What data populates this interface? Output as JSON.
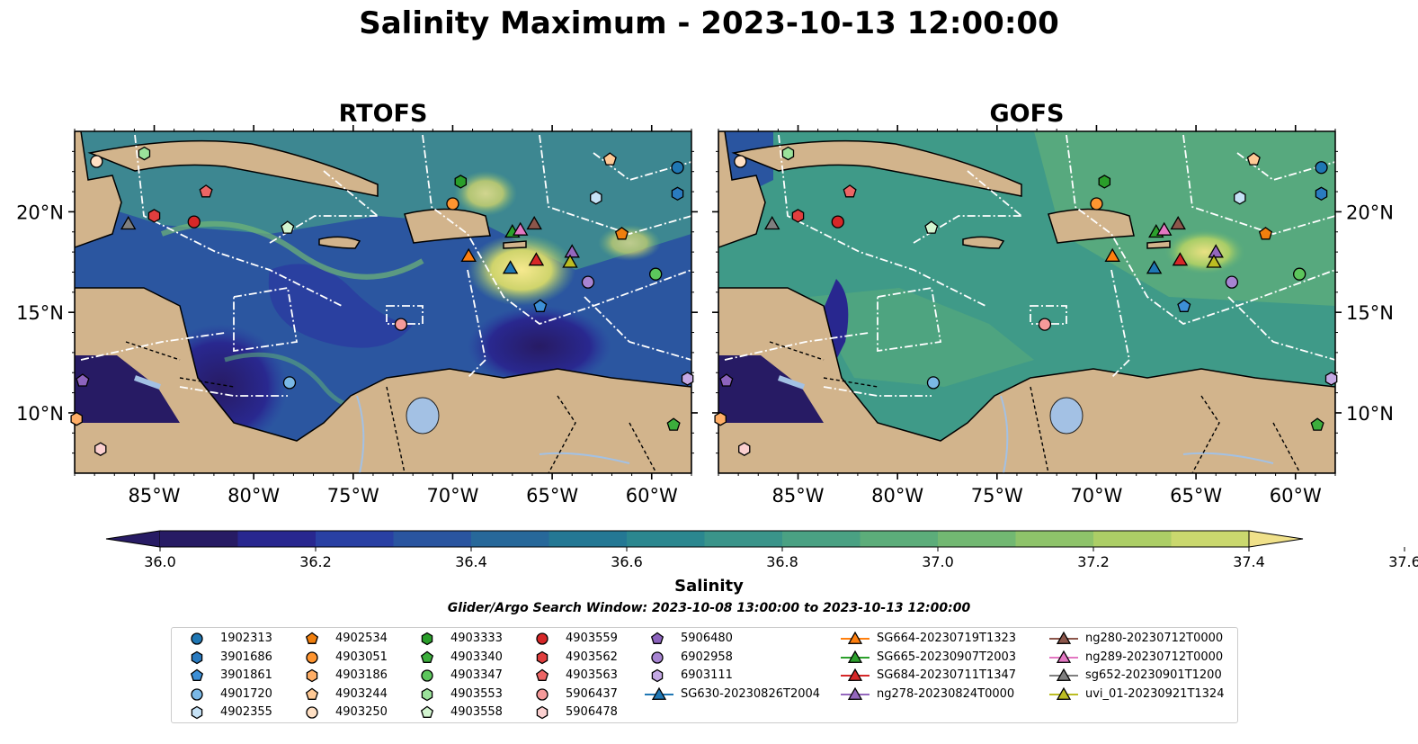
{
  "title": "Salinity Maximum - 2023-10-13 12:00:00",
  "panels": [
    {
      "title": "RTOFS"
    },
    {
      "title": "GOFS"
    }
  ],
  "axes": {
    "x_ticks": [
      "85°W",
      "80°W",
      "75°W",
      "70°W",
      "65°W",
      "60°W"
    ],
    "y_ticks": [
      "20°N",
      "15°N",
      "10°N"
    ]
  },
  "colorbar": {
    "label": "Salinity",
    "ticks": [
      "36.0",
      "36.2",
      "36.4",
      "36.6",
      "36.8",
      "37.0",
      "37.2",
      "37.4",
      "37.6"
    ],
    "colors": [
      "#271b64",
      "#28278f",
      "#2940a3",
      "#2a55a0",
      "#27689a",
      "#247894",
      "#2b878f",
      "#3a948a",
      "#4aa183",
      "#5cad7a",
      "#72b872",
      "#8ec36a",
      "#acce66",
      "#cad86e",
      "#f0e18a"
    ]
  },
  "subtitle": "Glider/Argo Search Window: 2023-10-08 13:00:00 to 2023-10-13 12:00:00",
  "legend": {
    "columns": [
      [
        {
          "label": "1902313",
          "marker": "circle",
          "color": "#1f77b4"
        },
        {
          "label": "3901686",
          "marker": "hexagon",
          "color": "#2a7bc0"
        },
        {
          "label": "3901861",
          "marker": "pentagon",
          "color": "#3d8fd6"
        },
        {
          "label": "4901720",
          "marker": "circle",
          "color": "#7ab8e6"
        },
        {
          "label": "4902355",
          "marker": "hexagon",
          "color": "#c6e2f6"
        }
      ],
      [
        {
          "label": "4902534",
          "marker": "pentagon",
          "color": "#f07f0e"
        },
        {
          "label": "4903051",
          "marker": "circle",
          "color": "#ff9530"
        },
        {
          "label": "4903186",
          "marker": "hexagon",
          "color": "#ffae66"
        },
        {
          "label": "4903244",
          "marker": "pentagon",
          "color": "#ffc995"
        },
        {
          "label": "4903250",
          "marker": "circle",
          "color": "#ffe0c4"
        }
      ],
      [
        {
          "label": "4903333",
          "marker": "hexagon",
          "color": "#2a9e2a"
        },
        {
          "label": "4903340",
          "marker": "pentagon",
          "color": "#3cae3c"
        },
        {
          "label": "4903347",
          "marker": "circle",
          "color": "#5cc65c"
        },
        {
          "label": "4903553",
          "marker": "hexagon",
          "color": "#9be29b"
        },
        {
          "label": "4903558",
          "marker": "pentagon",
          "color": "#d3f5d0"
        }
      ],
      [
        {
          "label": "4903559",
          "marker": "circle",
          "color": "#d62728"
        },
        {
          "label": "4903562",
          "marker": "hexagon",
          "color": "#e03e3e"
        },
        {
          "label": "4903563",
          "marker": "pentagon",
          "color": "#ec6565"
        },
        {
          "label": "5906437",
          "marker": "circle",
          "color": "#f59a9a"
        },
        {
          "label": "5906478",
          "marker": "hexagon",
          "color": "#fbd0d0"
        }
      ],
      [
        {
          "label": "5906480",
          "marker": "pentagon",
          "color": "#8c63bd"
        },
        {
          "label": "6902958",
          "marker": "circle",
          "color": "#a784d2"
        },
        {
          "label": "6903111",
          "marker": "hexagon",
          "color": "#c4a9e4"
        },
        {
          "label": "SG630-20230826T2004",
          "marker": "triangle-line",
          "color": "#1f77b4"
        }
      ],
      [
        {
          "label": "SG664-20230719T1323",
          "marker": "triangle-line",
          "color": "#ff7f0e"
        },
        {
          "label": "SG665-20230907T2003",
          "marker": "triangle-line",
          "color": "#2ca02c"
        },
        {
          "label": "SG684-20230711T1347",
          "marker": "triangle-line",
          "color": "#d62728"
        },
        {
          "label": "ng278-20230824T0000",
          "marker": "triangle-line",
          "color": "#9467bd"
        }
      ],
      [
        {
          "label": "ng280-20230712T0000",
          "marker": "triangle-line",
          "color": "#8c564b"
        },
        {
          "label": "ng289-20230712T0000",
          "marker": "triangle-line",
          "color": "#e377c2"
        },
        {
          "label": "sg652-20230901T1200",
          "marker": "triangle-line",
          "color": "#7f7f7f"
        },
        {
          "label": "uvi_01-20230921T1324",
          "marker": "triangle-line",
          "color": "#bcbd22"
        }
      ]
    ]
  },
  "chart_data": {
    "type": "heatmap",
    "title": "Salinity Maximum - 2023-10-13 12:00:00",
    "panels": [
      "RTOFS",
      "GOFS"
    ],
    "x_range": [
      -89,
      -58
    ],
    "y_range": [
      7,
      24
    ],
    "colorbar_range": [
      36.0,
      37.6
    ],
    "colorbar_label": "Salinity",
    "land_color": "#d2b48c",
    "points": [
      {
        "name": "1902313",
        "marker": "circle",
        "color": "#1f77b4",
        "lon": -58.7,
        "lat": 22.2
      },
      {
        "name": "3901686",
        "marker": "hexagon",
        "color": "#2a7bc0",
        "lon": -58.7,
        "lat": 20.9
      },
      {
        "name": "3901861",
        "marker": "pentagon",
        "color": "#3d8fd6",
        "lon": -65.6,
        "lat": 15.3
      },
      {
        "name": "4901720",
        "marker": "circle",
        "color": "#7ab8e6",
        "lon": -78.2,
        "lat": 11.5
      },
      {
        "name": "4902355",
        "marker": "hexagon",
        "color": "#c6e2f6",
        "lon": -62.8,
        "lat": 20.7
      },
      {
        "name": "4902534",
        "marker": "pentagon",
        "color": "#f07f0e",
        "lon": -61.5,
        "lat": 18.9
      },
      {
        "name": "4903051",
        "marker": "circle",
        "color": "#ff9530",
        "lon": -70.0,
        "lat": 20.4
      },
      {
        "name": "4903186",
        "marker": "hexagon",
        "color": "#ffae66",
        "lon": -88.9,
        "lat": 9.7
      },
      {
        "name": "4903244",
        "marker": "pentagon",
        "color": "#ffc995",
        "lon": -62.1,
        "lat": 22.6
      },
      {
        "name": "4903250",
        "marker": "circle",
        "color": "#ffe0c4",
        "lon": -87.9,
        "lat": 22.5
      },
      {
        "name": "4903333",
        "marker": "hexagon",
        "color": "#2a9e2a",
        "lon": -69.6,
        "lat": 21.5
      },
      {
        "name": "4903340",
        "marker": "pentagon",
        "color": "#3cae3c",
        "lon": -58.9,
        "lat": 9.4
      },
      {
        "name": "4903347",
        "marker": "circle",
        "color": "#5cc65c",
        "lon": -59.8,
        "lat": 16.9
      },
      {
        "name": "4903553",
        "marker": "hexagon",
        "color": "#9be29b",
        "lon": -85.5,
        "lat": 22.9
      },
      {
        "name": "4903558",
        "marker": "pentagon",
        "color": "#d3f5d0",
        "lon": -78.3,
        "lat": 19.2
      },
      {
        "name": "4903559",
        "marker": "circle",
        "color": "#d62728",
        "lon": -83.0,
        "lat": 19.5
      },
      {
        "name": "4903562",
        "marker": "hexagon",
        "color": "#e03e3e",
        "lon": -85.0,
        "lat": 19.8
      },
      {
        "name": "4903563",
        "marker": "pentagon",
        "color": "#ec6565",
        "lon": -82.4,
        "lat": 21.0
      },
      {
        "name": "5906437",
        "marker": "circle",
        "color": "#f59a9a",
        "lon": -72.6,
        "lat": 14.4
      },
      {
        "name": "5906478",
        "marker": "hexagon",
        "color": "#fbd0d0",
        "lon": -87.7,
        "lat": 8.2
      },
      {
        "name": "5906480",
        "marker": "pentagon",
        "color": "#8c63bd",
        "lon": -88.6,
        "lat": 11.6
      },
      {
        "name": "6902958",
        "marker": "circle",
        "color": "#a784d2",
        "lon": -63.2,
        "lat": 16.5
      },
      {
        "name": "6903111",
        "marker": "hexagon",
        "color": "#c4a9e4",
        "lon": -58.2,
        "lat": 11.7
      },
      {
        "name": "SG630-20230826T2004",
        "marker": "triangle",
        "color": "#1f77b4",
        "lon": -67.1,
        "lat": 17.2
      },
      {
        "name": "SG664-20230719T1323",
        "marker": "triangle",
        "color": "#ff7f0e",
        "lon": -69.2,
        "lat": 17.8
      },
      {
        "name": "SG665-20230907T2003",
        "marker": "triangle",
        "color": "#2ca02c",
        "lon": -67.0,
        "lat": 19.0
      },
      {
        "name": "SG684-20230711T1347",
        "marker": "triangle",
        "color": "#d62728",
        "lon": -65.8,
        "lat": 17.6
      },
      {
        "name": "ng278-20230824T0000",
        "marker": "triangle",
        "color": "#9467bd",
        "lon": -64.0,
        "lat": 18.0
      },
      {
        "name": "ng280-20230712T0000",
        "marker": "triangle",
        "color": "#8c564b",
        "lon": -65.9,
        "lat": 19.4
      },
      {
        "name": "ng289-20230712T0000",
        "marker": "triangle",
        "color": "#e377c2",
        "lon": -66.6,
        "lat": 19.1
      },
      {
        "name": "sg652-20230901T1200",
        "marker": "triangle",
        "color": "#7f7f7f",
        "lon": -86.3,
        "lat": 19.4
      },
      {
        "name": "uvi_01-20230921T1324",
        "marker": "triangle",
        "color": "#bcbd22",
        "lon": -64.1,
        "lat": 17.5
      }
    ]
  }
}
